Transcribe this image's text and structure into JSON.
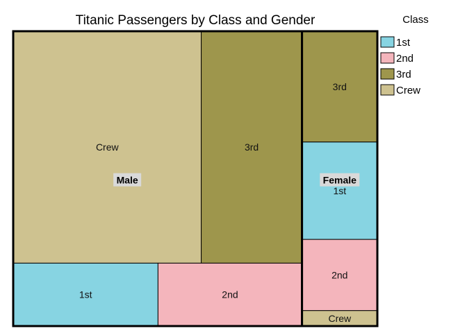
{
  "chart_data": {
    "type": "treemap",
    "title": "Titanic Passengers by Class and Gender",
    "legend": {
      "title": "Class",
      "position": "right",
      "items": [
        {
          "label": "1st",
          "color": "#87d4e2"
        },
        {
          "label": "2nd",
          "color": "#f4b5bc"
        },
        {
          "label": "3rd",
          "color": "#9e964c"
        },
        {
          "label": "Crew",
          "color": "#cec290"
        }
      ]
    },
    "groups": [
      {
        "name": "Male",
        "children": [
          {
            "label": "Crew",
            "value": 862
          },
          {
            "label": "3rd",
            "value": 462
          },
          {
            "label": "1st",
            "value": 180
          },
          {
            "label": "2nd",
            "value": 179
          }
        ]
      },
      {
        "name": "Female",
        "children": [
          {
            "label": "3rd",
            "value": 165
          },
          {
            "label": "1st",
            "value": 145
          },
          {
            "label": "2nd",
            "value": 106
          },
          {
            "label": "Crew",
            "value": 23
          }
        ]
      }
    ]
  }
}
